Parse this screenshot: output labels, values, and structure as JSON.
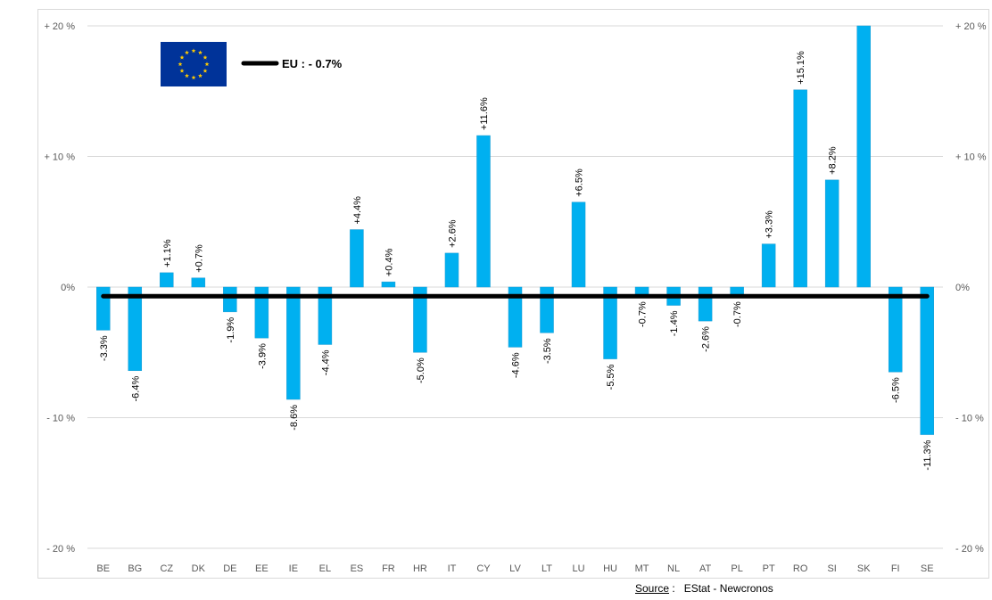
{
  "chart_data": {
    "type": "bar",
    "categories": [
      "BE",
      "BG",
      "CZ",
      "DK",
      "DE",
      "EE",
      "IE",
      "EL",
      "ES",
      "FR",
      "HR",
      "IT",
      "CY",
      "LV",
      "LT",
      "LU",
      "HU",
      "MT",
      "NL",
      "AT",
      "PL",
      "PT",
      "RO",
      "SI",
      "SK",
      "FI",
      "SE"
    ],
    "values": [
      -3.3,
      -6.4,
      1.1,
      0.7,
      -1.9,
      -3.9,
      -8.6,
      -4.4,
      4.4,
      0.4,
      -5.0,
      2.6,
      11.6,
      -4.6,
      -3.5,
      6.5,
      -5.5,
      -0.7,
      -1.4,
      -2.6,
      -0.7,
      3.3,
      15.1,
      8.2,
      20.0,
      -6.5,
      -11.3
    ],
    "data_labels": [
      "-3.3%",
      "-6.4%",
      "+1.1%",
      "+0.7%",
      "-1.9%",
      "-3.9%",
      "-8.6%",
      "-4.4%",
      "+4.4%",
      "+0.4%",
      "-5.0%",
      "+2.6%",
      "+11.6%",
      "-4.6%",
      "-3.5%",
      "+6.5%",
      "-5.5%",
      "-0.7%",
      "-1.4%",
      "-2.6%",
      "-0.7%",
      "+3.3%",
      "+15.1%",
      "+8.2%",
      "",
      "-6.5%",
      "-11.3%"
    ],
    "ylim": [
      -20,
      20
    ],
    "yticks": [
      20,
      10,
      0,
      -10,
      -20
    ],
    "ytick_labels": [
      "+ 20 %",
      "+ 10 %",
      "0%",
      "- 10 %",
      "- 20 %"
    ],
    "reference_line": {
      "label": "EU :  - 0.7%",
      "value": -0.7,
      "color": "#000000"
    },
    "bar_color": "#00B0F0",
    "grid": true,
    "title": "",
    "xlabel": "",
    "ylabel": ""
  },
  "legend": {
    "flag_icon": "eu-flag-icon",
    "flag_color": "#003399",
    "star_color": "#FFCC00"
  },
  "source": {
    "label": "Source",
    "separator": " :   ",
    "text": "EStat - Newcronos"
  }
}
